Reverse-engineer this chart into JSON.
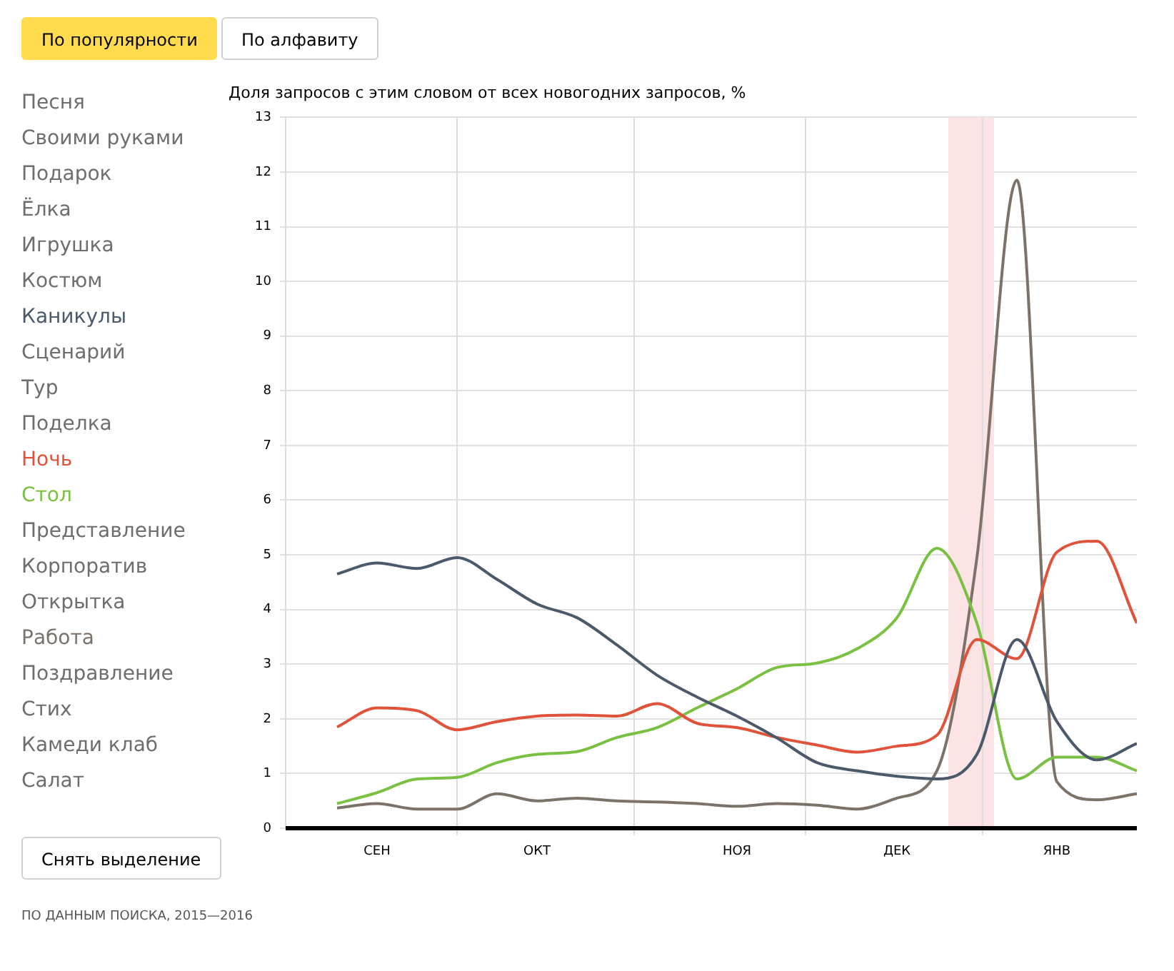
{
  "chart_data": {
    "type": "line",
    "title": "Доля запросов с этим словом от всех новогодних запросов, %",
    "categories": [
      null,
      "СЕН",
      null,
      null,
      null,
      "ОКТ",
      null,
      null,
      null,
      null,
      "НОЯ",
      null,
      null,
      null,
      "ДЕК",
      null,
      null,
      null,
      "ЯНВ",
      null,
      null
    ],
    "ylim": [
      0,
      13
    ],
    "yticks": [
      0,
      1,
      2,
      3,
      4,
      5,
      6,
      7,
      8,
      9,
      10,
      11,
      12,
      13
    ],
    "grid": true,
    "legend": "left",
    "marker": "none",
    "series": [
      {
        "name": "Песня",
        "color": "#6e6e6e",
        "values": [
          null,
          null,
          null,
          null,
          null,
          null,
          null,
          null,
          null,
          null,
          null,
          null,
          null,
          null,
          null,
          null,
          null,
          null,
          null,
          null,
          null
        ]
      },
      {
        "name": "Своими руками",
        "color": "#6e6e6e",
        "values": [
          null,
          null,
          null,
          null,
          null,
          null,
          null,
          null,
          null,
          null,
          null,
          null,
          null,
          null,
          null,
          null,
          null,
          null,
          null,
          null,
          null
        ]
      },
      {
        "name": "Подарок",
        "color": "#6e6e6e",
        "values": [
          null,
          null,
          null,
          null,
          null,
          null,
          null,
          null,
          null,
          null,
          null,
          null,
          null,
          null,
          null,
          null,
          null,
          null,
          null,
          null,
          null
        ]
      },
      {
        "name": "Ёлка",
        "color": "#6e6e6e",
        "values": [
          null,
          null,
          null,
          null,
          null,
          null,
          null,
          null,
          null,
          null,
          null,
          null,
          null,
          null,
          null,
          null,
          null,
          null,
          null,
          null,
          null
        ]
      },
      {
        "name": "Игрушка",
        "color": "#6e6e6e",
        "values": [
          null,
          null,
          null,
          null,
          null,
          null,
          null,
          null,
          null,
          null,
          null,
          null,
          null,
          null,
          null,
          null,
          null,
          null,
          null,
          null,
          null
        ]
      },
      {
        "name": "Костюм",
        "color": "#6e6e6e",
        "values": [
          null,
          null,
          null,
          null,
          null,
          null,
          null,
          null,
          null,
          null,
          null,
          null,
          null,
          null,
          null,
          null,
          null,
          null,
          null,
          null,
          null
        ]
      },
      {
        "name": "Каникулы",
        "color": "#4a5a6a",
        "values": [
          4.65,
          4.85,
          4.75,
          4.95,
          4.55,
          4.1,
          3.85,
          3.35,
          2.8,
          2.4,
          2.05,
          1.65,
          1.2,
          1.05,
          0.95,
          0.9,
          1.35,
          3.45,
          1.95,
          1.25,
          1.55
        ]
      },
      {
        "name": "Сценарий",
        "color": "#6e6e6e",
        "values": [
          null,
          null,
          null,
          null,
          null,
          null,
          null,
          null,
          null,
          null,
          null,
          null,
          null,
          null,
          null,
          null,
          null,
          null,
          null,
          null,
          null
        ]
      },
      {
        "name": "Тур",
        "color": "#6e6e6e",
        "values": [
          null,
          null,
          null,
          null,
          null,
          null,
          null,
          null,
          null,
          null,
          null,
          null,
          null,
          null,
          null,
          null,
          null,
          null,
          null,
          null,
          null
        ]
      },
      {
        "name": "Поделка",
        "color": "#6e6e6e",
        "values": [
          null,
          null,
          null,
          null,
          null,
          null,
          null,
          null,
          null,
          null,
          null,
          null,
          null,
          null,
          null,
          null,
          null,
          null,
          null,
          null,
          null
        ]
      },
      {
        "name": "Ночь",
        "color": "#e0533a",
        "values": [
          1.85,
          2.2,
          2.15,
          1.8,
          1.95,
          2.05,
          2.07,
          2.05,
          2.28,
          1.92,
          1.84,
          1.66,
          1.52,
          1.39,
          1.5,
          1.7,
          3.45,
          3.1,
          5.05,
          5.25,
          3.75
        ]
      },
      {
        "name": "Стол",
        "color": "#7ac143",
        "values": [
          0.45,
          0.65,
          0.9,
          0.93,
          1.2,
          1.35,
          1.4,
          1.66,
          1.84,
          2.2,
          2.55,
          2.94,
          3.02,
          3.28,
          3.85,
          5.12,
          3.75,
          0.9,
          1.3,
          1.3,
          1.05
        ]
      },
      {
        "name": "Представление",
        "color": "#6e6e6e",
        "values": [
          null,
          null,
          null,
          null,
          null,
          null,
          null,
          null,
          null,
          null,
          null,
          null,
          null,
          null,
          null,
          null,
          null,
          null,
          null,
          null,
          null
        ]
      },
      {
        "name": "Корпоратив",
        "color": "#6e6e6e",
        "values": [
          null,
          null,
          null,
          null,
          null,
          null,
          null,
          null,
          null,
          null,
          null,
          null,
          null,
          null,
          null,
          null,
          null,
          null,
          null,
          null,
          null
        ]
      },
      {
        "name": "Открытка",
        "color": "#6e6e6e",
        "values": [
          null,
          null,
          null,
          null,
          null,
          null,
          null,
          null,
          null,
          null,
          null,
          null,
          null,
          null,
          null,
          null,
          null,
          null,
          null,
          null,
          null
        ]
      },
      {
        "name": "Работа",
        "color": "#7d7268",
        "values": [
          0.37,
          0.45,
          0.35,
          0.35,
          0.63,
          0.5,
          0.55,
          0.5,
          0.48,
          0.45,
          0.4,
          0.45,
          0.42,
          0.35,
          0.55,
          1.05,
          4.95,
          11.85,
          0.85,
          0.52,
          0.63
        ]
      },
      {
        "name": "Поздравление",
        "color": "#6e6e6e",
        "values": [
          null,
          null,
          null,
          null,
          null,
          null,
          null,
          null,
          null,
          null,
          null,
          null,
          null,
          null,
          null,
          null,
          null,
          null,
          null,
          null,
          null
        ]
      },
      {
        "name": "Стих",
        "color": "#6e6e6e",
        "values": [
          null,
          null,
          null,
          null,
          null,
          null,
          null,
          null,
          null,
          null,
          null,
          null,
          null,
          null,
          null,
          null,
          null,
          null,
          null,
          null,
          null
        ]
      },
      {
        "name": "Камеди клаб",
        "color": "#6e6e6e",
        "values": [
          null,
          null,
          null,
          null,
          null,
          null,
          null,
          null,
          null,
          null,
          null,
          null,
          null,
          null,
          null,
          null,
          null,
          null,
          null,
          null,
          null
        ]
      },
      {
        "name": "Салат",
        "color": "#6e6e6e",
        "values": [
          null,
          null,
          null,
          null,
          null,
          null,
          null,
          null,
          null,
          null,
          null,
          null,
          null,
          null,
          null,
          null,
          null,
          null,
          null,
          null,
          null
        ]
      }
    ],
    "annotations": [
      "По популярности",
      "По алфавиту",
      "Снять выделение",
      "ПО ДАННЫМ ПОИСКА, 2015—2016"
    ]
  }
}
